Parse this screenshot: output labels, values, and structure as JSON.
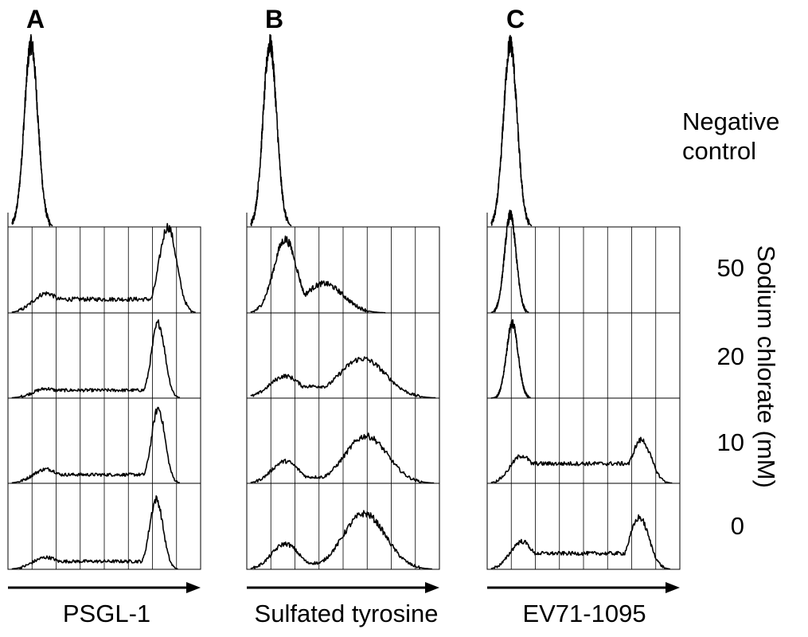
{
  "chart_data": {
    "type": "histogram",
    "x_axis_scale": "log (unlabeled arrow, increasing fluorescence)",
    "grid": true,
    "panels": [
      {
        "label": "A",
        "xlabel": "PSGL-1",
        "rows": [
          {
            "condition": "Negative control",
            "peaks": [
              {
                "pos": 0.12,
                "height": 1.0,
                "width": 0.035
              }
            ]
          },
          {
            "condition": "50",
            "peaks": [
              {
                "pos": 0.2,
                "height": 0.2,
                "width": 0.07
              },
              {
                "pos": 0.83,
                "height": 0.88,
                "width": 0.045
              }
            ],
            "plateau": 0.14
          },
          {
            "condition": "20",
            "peaks": [
              {
                "pos": 0.2,
                "height": 0.12,
                "width": 0.07
              },
              {
                "pos": 0.78,
                "height": 0.95,
                "width": 0.035
              }
            ],
            "plateau": 0.1
          },
          {
            "condition": "10",
            "peaks": [
              {
                "pos": 0.2,
                "height": 0.18,
                "width": 0.07
              },
              {
                "pos": 0.78,
                "height": 0.95,
                "width": 0.035
              }
            ],
            "plateau": 0.11
          },
          {
            "condition": "0",
            "peaks": [
              {
                "pos": 0.2,
                "height": 0.15,
                "width": 0.07
              },
              {
                "pos": 0.77,
                "height": 0.88,
                "width": 0.035
              }
            ],
            "plateau": 0.1
          }
        ]
      },
      {
        "label": "B",
        "xlabel": "Sulfated tyrosine",
        "rows": [
          {
            "condition": "Negative control",
            "peaks": [
              {
                "pos": 0.12,
                "height": 1.0,
                "width": 0.035
              }
            ]
          },
          {
            "condition": "50",
            "peaks": [
              {
                "pos": 0.2,
                "height": 0.75,
                "width": 0.06
              },
              {
                "pos": 0.4,
                "height": 0.3,
                "width": 0.1
              }
            ],
            "plateau": 0.05
          },
          {
            "condition": "20",
            "peaks": [
              {
                "pos": 0.2,
                "height": 0.28,
                "width": 0.08
              },
              {
                "pos": 0.6,
                "height": 0.5,
                "width": 0.12
              }
            ],
            "plateau": 0.15
          },
          {
            "condition": "10",
            "peaks": [
              {
                "pos": 0.2,
                "height": 0.28,
                "width": 0.07
              },
              {
                "pos": 0.62,
                "height": 0.6,
                "width": 0.11
              }
            ],
            "plateau": 0.08
          },
          {
            "condition": "0",
            "peaks": [
              {
                "pos": 0.2,
                "height": 0.32,
                "width": 0.07
              },
              {
                "pos": 0.61,
                "height": 0.7,
                "width": 0.11
              }
            ],
            "plateau": 0.08
          }
        ]
      },
      {
        "label": "C",
        "xlabel": "EV71-1095",
        "rows": [
          {
            "condition": "Negative control",
            "peaks": [
              {
                "pos": 0.12,
                "height": 1.0,
                "width": 0.035
              }
            ]
          },
          {
            "condition": "50",
            "peaks": [
              {
                "pos": 0.12,
                "height": 1.0,
                "width": 0.03
              }
            ],
            "plateau": 0.0
          },
          {
            "condition": "20",
            "peaks": [
              {
                "pos": 0.13,
                "height": 0.95,
                "width": 0.03
              }
            ],
            "plateau": 0.1
          },
          {
            "condition": "10",
            "peaks": [
              {
                "pos": 0.18,
                "height": 0.35,
                "width": 0.06
              },
              {
                "pos": 0.8,
                "height": 0.55,
                "width": 0.05
              }
            ],
            "plateau": 0.25
          },
          {
            "condition": "0",
            "peaks": [
              {
                "pos": 0.18,
                "height": 0.35,
                "width": 0.06
              },
              {
                "pos": 0.79,
                "height": 0.65,
                "width": 0.05
              }
            ],
            "plateau": 0.2
          }
        ]
      }
    ],
    "row_labels": {
      "negative": "Negative\ncontrol",
      "concentrations": [
        "50",
        "20",
        "10",
        "0"
      ],
      "side": "Sodium chlorate (mM)"
    }
  }
}
